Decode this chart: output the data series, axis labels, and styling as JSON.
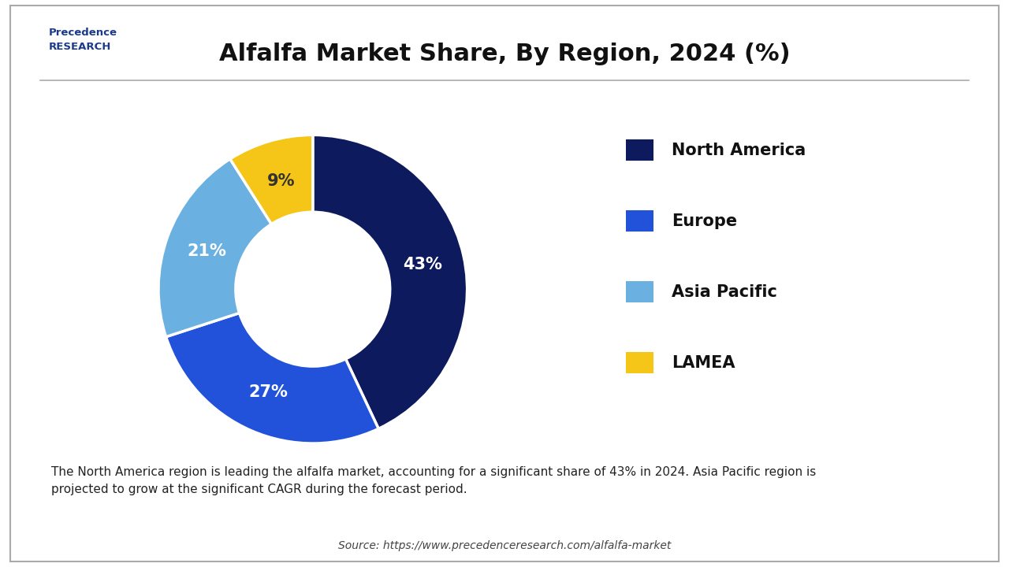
{
  "title": "Alfalfa Market Share, By Region, 2024 (%)",
  "slices": [
    43,
    27,
    21,
    9
  ],
  "labels": [
    "North America",
    "Europe",
    "Asia Pacific",
    "LAMEA"
  ],
  "pct_labels": [
    "43%",
    "27%",
    "21%",
    "9%"
  ],
  "colors": [
    "#0d1b5e",
    "#2152d9",
    "#6ab0e0",
    "#f5c518"
  ],
  "pct_colors": [
    "white",
    "white",
    "white",
    "#333333"
  ],
  "background": "#ffffff",
  "note_text": "The North America region is leading the alfalfa market, accounting for a significant share of 43% in 2024. Asia Pacific region is\nprojected to grow at the significant CAGR during the forecast period.",
  "source_text": "Source: https://www.precedenceresearch.com/alfalfa-market",
  "note_bg": "#dce9f5",
  "border_color": "#aaaaaa",
  "title_fontsize": 22,
  "legend_fontsize": 15,
  "pct_fontsize": 15
}
